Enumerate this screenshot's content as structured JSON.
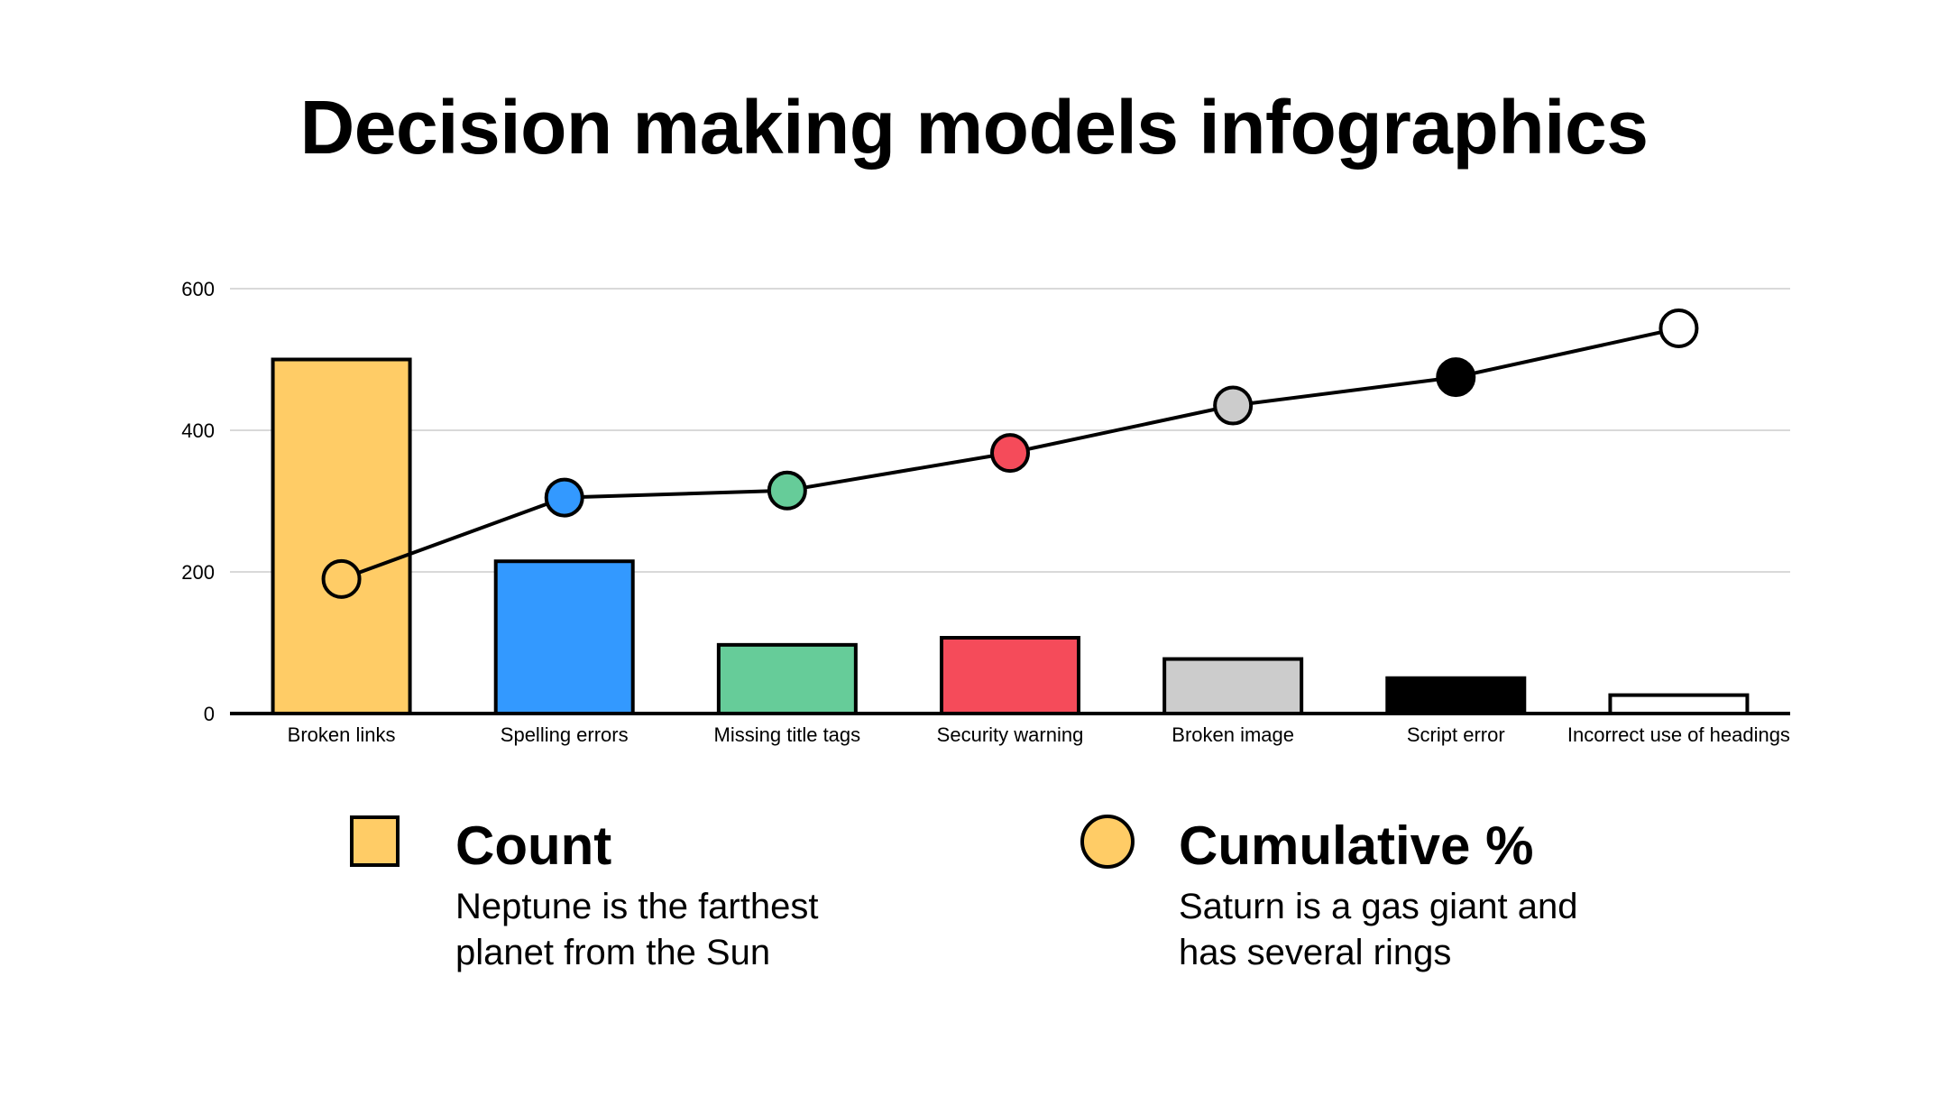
{
  "title": "Decision making models infographics",
  "chart_data": {
    "type": "bar",
    "categories": [
      "Broken links",
      "Spelling errors",
      "Missing title tags",
      "Security warning",
      "Broken image",
      "Script error",
      "Incorrect use of headings"
    ],
    "series": [
      {
        "name": "Count",
        "type": "bar",
        "values": [
          500,
          215,
          97,
          107,
          77,
          50,
          26
        ],
        "colors": [
          "#FFCC66",
          "#3399FF",
          "#66CC99",
          "#F54B5A",
          "#CCCCCC",
          "#000000",
          "#FFFFFF"
        ]
      },
      {
        "name": "Cumulative %",
        "type": "line",
        "values": [
          190,
          305,
          315,
          368,
          435,
          475,
          544
        ],
        "colors": [
          "#FFCC66",
          "#3399FF",
          "#66CC99",
          "#F54B5A",
          "#CCCCCC",
          "#000000",
          "#FFFFFF"
        ]
      }
    ],
    "yticks": [
      0,
      200,
      400,
      600
    ],
    "ylim": [
      0,
      600
    ],
    "grid": true,
    "xlabel": "",
    "ylabel": "",
    "legend_position": "bottom"
  },
  "legend": [
    {
      "name": "Count",
      "description": "Neptune is the farthest planet from the Sun",
      "color": "#FFCC66",
      "shape": "square"
    },
    {
      "name": "Cumulative %",
      "description": "Saturn is a gas giant and has several rings",
      "color": "#FFCC66",
      "shape": "circle"
    }
  ]
}
